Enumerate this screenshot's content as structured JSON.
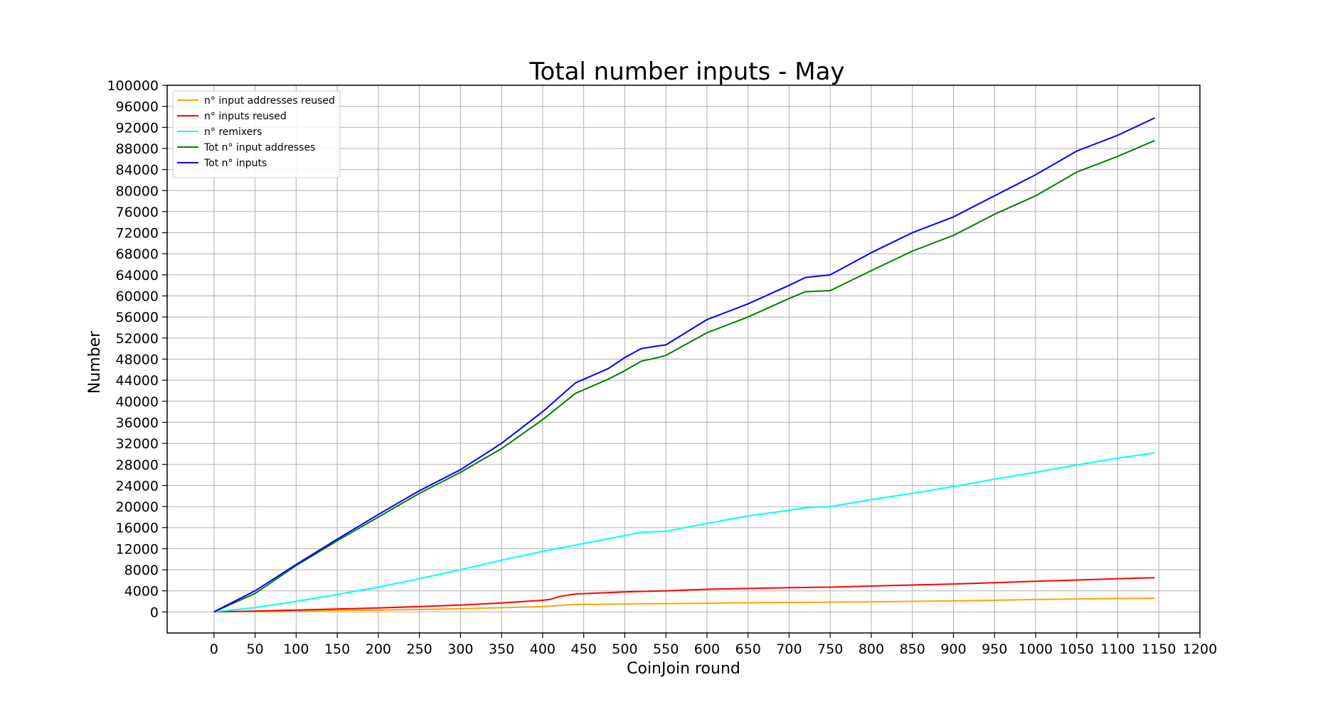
{
  "chart_data": {
    "type": "line",
    "title": "Total number inputs - May",
    "xlabel": "CoinJoin round",
    "ylabel": "Number",
    "xlim": [
      -57,
      1200
    ],
    "ylim": [
      -4000,
      100000
    ],
    "xticks": [
      0,
      50,
      100,
      150,
      200,
      250,
      300,
      350,
      400,
      450,
      500,
      550,
      600,
      650,
      700,
      750,
      800,
      850,
      900,
      950,
      1000,
      1050,
      1100,
      1150,
      1200
    ],
    "yticks": [
      0,
      4000,
      8000,
      12000,
      16000,
      20000,
      24000,
      28000,
      32000,
      36000,
      40000,
      44000,
      48000,
      52000,
      56000,
      60000,
      64000,
      68000,
      72000,
      76000,
      80000,
      84000,
      88000,
      92000,
      96000,
      100000
    ],
    "grid": true,
    "legend_position": "upper-left",
    "series": [
      {
        "name": "n° input addresses reused",
        "color": "#ffa500",
        "x": [
          0,
          50,
          100,
          150,
          200,
          250,
          300,
          350,
          400,
          420,
          440,
          500,
          550,
          600,
          650,
          700,
          750,
          800,
          850,
          900,
          950,
          1000,
          1050,
          1100,
          1145
        ],
        "y": [
          0,
          80,
          180,
          280,
          350,
          450,
          600,
          800,
          1000,
          1200,
          1400,
          1500,
          1560,
          1650,
          1750,
          1800,
          1850,
          1900,
          2000,
          2100,
          2200,
          2350,
          2450,
          2550,
          2600
        ]
      },
      {
        "name": "n° inputs reused",
        "color": "#ff0000",
        "x": [
          0,
          50,
          100,
          150,
          200,
          250,
          300,
          350,
          400,
          410,
          420,
          440,
          500,
          550,
          600,
          650,
          700,
          750,
          800,
          850,
          900,
          950,
          1000,
          1050,
          1100,
          1145
        ],
        "y": [
          0,
          150,
          350,
          550,
          750,
          1000,
          1300,
          1700,
          2200,
          2400,
          2900,
          3400,
          3800,
          4000,
          4300,
          4450,
          4600,
          4700,
          4900,
          5100,
          5300,
          5550,
          5800,
          6050,
          6300,
          6500
        ]
      },
      {
        "name": "n° remixers",
        "color": "#00ffff",
        "x": [
          0,
          50,
          100,
          150,
          200,
          250,
          300,
          350,
          400,
          450,
          500,
          520,
          550,
          600,
          650,
          700,
          720,
          750,
          800,
          850,
          900,
          950,
          1000,
          1050,
          1100,
          1145
        ],
        "y": [
          0,
          800,
          2000,
          3300,
          4700,
          6300,
          8000,
          9800,
          11500,
          13000,
          14500,
          15100,
          15300,
          16800,
          18200,
          19300,
          19800,
          20000,
          21300,
          22500,
          23800,
          25200,
          26500,
          27900,
          29200,
          30200
        ]
      },
      {
        "name": "Tot n° input addresses",
        "color": "#008000",
        "x": [
          0,
          50,
          100,
          150,
          200,
          250,
          300,
          350,
          400,
          440,
          480,
          500,
          520,
          540,
          550,
          600,
          650,
          700,
          720,
          750,
          800,
          850,
          900,
          950,
          1000,
          1050,
          1100,
          1145
        ],
        "y": [
          0,
          3500,
          8800,
          13500,
          18000,
          22500,
          26500,
          31000,
          36500,
          41500,
          44200,
          45800,
          47600,
          48300,
          48700,
          53000,
          56000,
          59500,
          60800,
          61000,
          64800,
          68500,
          71500,
          75500,
          79000,
          83500,
          86500,
          89500
        ]
      },
      {
        "name": "Tot n° inputs",
        "color": "#0000ff",
        "x": [
          0,
          50,
          100,
          150,
          200,
          250,
          300,
          350,
          400,
          440,
          480,
          500,
          520,
          540,
          550,
          600,
          650,
          700,
          720,
          750,
          800,
          850,
          900,
          950,
          1000,
          1050,
          1100,
          1145
        ],
        "y": [
          0,
          4000,
          9000,
          13800,
          18500,
          23000,
          27000,
          32000,
          38000,
          43500,
          46200,
          48300,
          50000,
          50500,
          50700,
          55500,
          58500,
          62000,
          63500,
          64000,
          68200,
          72000,
          75000,
          79000,
          83000,
          87500,
          90500,
          93800
        ]
      }
    ]
  }
}
